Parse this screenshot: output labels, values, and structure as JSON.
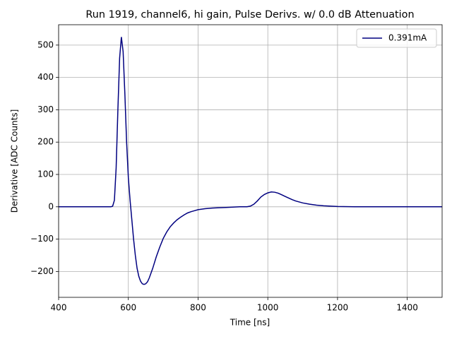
{
  "chart_data": {
    "type": "line",
    "title": "Run 1919, channel6, hi gain, Pulse Derivs. w/ 0.0 dB Attenuation",
    "xlabel": "Time [ns]",
    "ylabel": "Derivative [ADC Counts]",
    "x": [
      400,
      450,
      500,
      540,
      550,
      555,
      560,
      565,
      570,
      575,
      580,
      585,
      590,
      595,
      600,
      605,
      610,
      615,
      620,
      625,
      630,
      635,
      640,
      645,
      650,
      655,
      660,
      670,
      680,
      690,
      700,
      710,
      720,
      730,
      740,
      750,
      760,
      770,
      780,
      790,
      800,
      820,
      840,
      860,
      880,
      900,
      920,
      940,
      950,
      960,
      970,
      980,
      990,
      1000,
      1010,
      1020,
      1030,
      1040,
      1050,
      1060,
      1070,
      1080,
      1090,
      1100,
      1120,
      1140,
      1160,
      1180,
      1200,
      1250,
      1300,
      1400,
      1500
    ],
    "series": [
      {
        "name": "0.391mA",
        "color": "#000080",
        "values": [
          0,
          0,
          0,
          0,
          0,
          2,
          20,
          120,
          300,
          460,
          525,
          480,
          350,
          200,
          90,
          20,
          -40,
          -100,
          -150,
          -190,
          -215,
          -230,
          -238,
          -240,
          -238,
          -232,
          -220,
          -190,
          -155,
          -125,
          -98,
          -78,
          -62,
          -50,
          -40,
          -32,
          -25,
          -19,
          -15,
          -12,
          -9,
          -6,
          -4,
          -3,
          -2,
          -1,
          0,
          0,
          2,
          8,
          18,
          30,
          38,
          43,
          46,
          45,
          42,
          37,
          32,
          27,
          22,
          18,
          15,
          12,
          8,
          5,
          3,
          2,
          1,
          0,
          0,
          0,
          0
        ]
      }
    ],
    "xlim": [
      400,
      1500
    ],
    "ylim": [
      -280,
      563
    ],
    "xticks": [
      400,
      600,
      800,
      1000,
      1200,
      1400
    ],
    "yticks": [
      {
        "value": -200,
        "label": "−200"
      },
      {
        "value": -100,
        "label": "−100"
      },
      0,
      100,
      200,
      300,
      400,
      500
    ],
    "grid": true,
    "legend": "upper right"
  }
}
